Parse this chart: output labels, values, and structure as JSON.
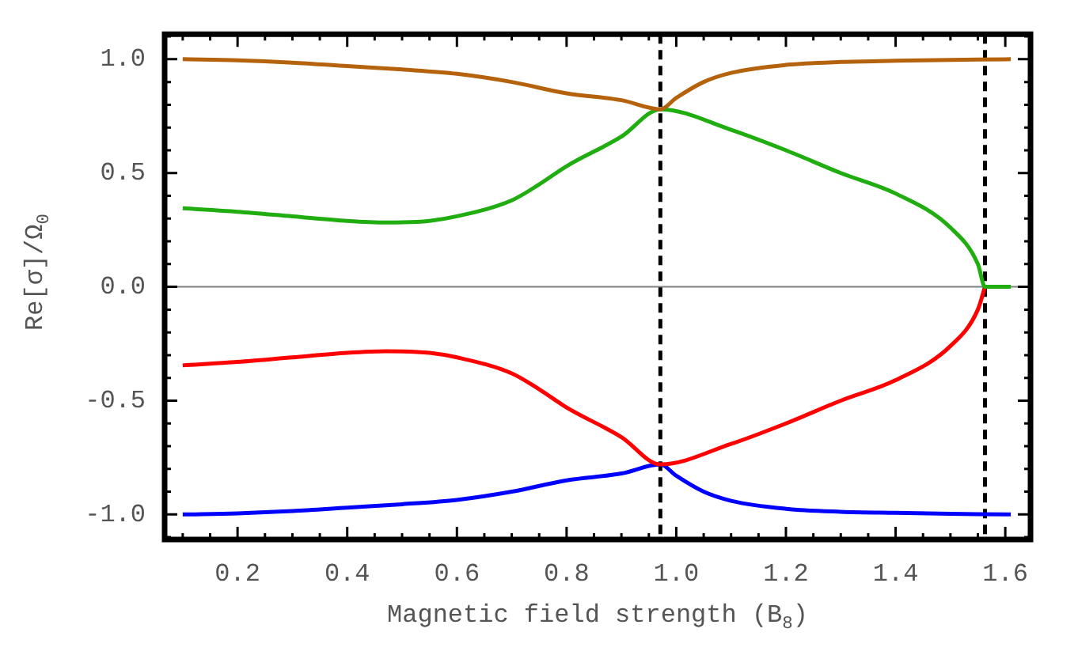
{
  "chart_data": {
    "type": "line",
    "xlabel": "Magnetic field strength (B$_{8}$)",
    "ylabel": "Re[σ]/Ω$_{0}$",
    "xlim": [
      0.067,
      1.646
    ],
    "ylim": [
      -1.11,
      1.11
    ],
    "xticks": [
      0.2,
      0.4,
      0.6,
      0.8,
      {
        "value": 1,
        "label": "1.0"
      },
      1.2,
      1.4,
      1.6
    ],
    "yticks": [
      {
        "value": -1,
        "label": "-1.0"
      },
      {
        "value": -0.5,
        "label": "-0.5"
      },
      {
        "value": 0,
        "label": "0.0"
      },
      {
        "value": 0.5,
        "label": "0.5"
      },
      {
        "value": 1,
        "label": "1.0"
      }
    ],
    "grid": false,
    "legend": false,
    "marker": "none",
    "line_style": "solid",
    "series": [
      {
        "color": "#b5620d",
        "x": [
          0.1,
          0.2,
          0.3,
          0.4,
          0.5,
          0.6,
          0.7,
          0.8,
          0.9,
          0.971,
          1.0,
          1.05,
          1.1,
          1.2,
          1.3,
          1.4,
          1.5,
          1.61
        ],
        "values": [
          1.0,
          0.995,
          0.985,
          0.97,
          0.955,
          0.936,
          0.9,
          0.85,
          0.82,
          0.78,
          0.83,
          0.9,
          0.94,
          0.975,
          0.988,
          0.993,
          0.997,
          1.0
        ]
      },
      {
        "color": "#1fad10",
        "x": [
          0.1,
          0.2,
          0.3,
          0.4,
          0.47,
          0.55,
          0.6,
          0.7,
          0.75,
          0.8,
          0.9,
          0.971,
          1.1,
          1.2,
          1.3,
          1.4,
          1.5,
          1.55,
          1.563,
          1.61
        ],
        "values": [
          0.345,
          0.33,
          0.31,
          0.29,
          0.283,
          0.29,
          0.31,
          0.38,
          0.45,
          0.53,
          0.66,
          0.78,
          0.69,
          0.6,
          0.5,
          0.41,
          0.26,
          0.1,
          0,
          0
        ]
      },
      {
        "color": "#ff0000",
        "x": [
          0.1,
          0.2,
          0.3,
          0.4,
          0.47,
          0.55,
          0.6,
          0.7,
          0.75,
          0.8,
          0.9,
          0.971,
          1.1,
          1.2,
          1.3,
          1.4,
          1.5,
          1.55,
          1.563
        ],
        "values": [
          -0.345,
          -0.33,
          -0.31,
          -0.29,
          -0.283,
          -0.29,
          -0.31,
          -0.38,
          -0.45,
          -0.53,
          -0.66,
          -0.78,
          -0.69,
          -0.6,
          -0.5,
          -0.41,
          -0.26,
          -0.1,
          0
        ]
      },
      {
        "color": "#0000ff",
        "x": [
          0.1,
          0.2,
          0.3,
          0.4,
          0.5,
          0.6,
          0.7,
          0.8,
          0.9,
          0.971,
          1.0,
          1.05,
          1.1,
          1.2,
          1.3,
          1.4,
          1.5,
          1.61
        ],
        "values": [
          -1.0,
          -0.995,
          -0.985,
          -0.97,
          -0.955,
          -0.936,
          -0.9,
          -0.85,
          -0.82,
          -0.78,
          -0.83,
          -0.9,
          -0.94,
          -0.975,
          -0.988,
          -0.993,
          -0.997,
          -1.0
        ]
      }
    ],
    "ref_lines": [
      {
        "axis": "y",
        "value": 0,
        "color": "#808080",
        "line_style": "solid"
      },
      {
        "axis": "x",
        "value": 0.971,
        "color": "#000000",
        "line_style": "dashed"
      },
      {
        "axis": "x",
        "value": 1.563,
        "color": "#000000",
        "line_style": "dashed"
      }
    ]
  }
}
